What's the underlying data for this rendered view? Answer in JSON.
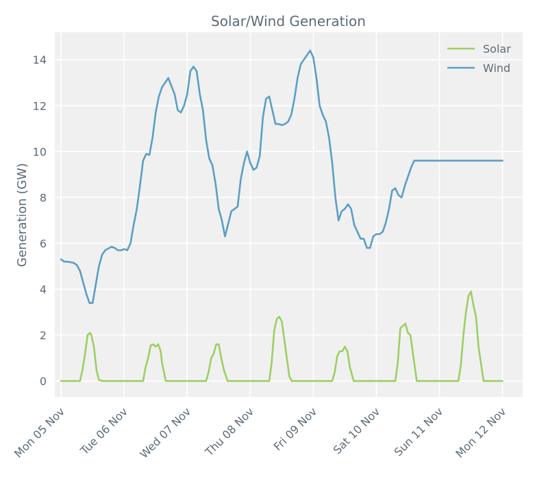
{
  "chart_data": {
    "type": "line",
    "title": "Solar/Wind Generation",
    "xlabel": "",
    "ylabel": "Generation (GW)",
    "ylim": [
      -0.7,
      15.2
    ],
    "xlim": [
      -0.1,
      7.32
    ],
    "yticks": [
      0,
      2,
      4,
      6,
      8,
      10,
      12,
      14
    ],
    "xticks": [
      {
        "x": 0,
        "label": "Mon 05 Nov"
      },
      {
        "x": 1,
        "label": "Tue 06 Nov"
      },
      {
        "x": 2,
        "label": "Wed 07 Nov"
      },
      {
        "x": 3,
        "label": "Thu 08 Nov"
      },
      {
        "x": 4,
        "label": "Fri 09 Nov"
      },
      {
        "x": 5,
        "label": "Sat 10 Nov"
      },
      {
        "x": 6,
        "label": "Sun 11 Nov"
      },
      {
        "x": 7,
        "label": "Mon 12 Nov"
      }
    ],
    "grid": true,
    "legend_position": "top-right",
    "series": [
      {
        "name": "Solar",
        "color": "#9dce63",
        "x": [
          0,
          0.3,
          0.34,
          0.38,
          0.42,
          0.46,
          0.48,
          0.52,
          0.56,
          0.6,
          0.66,
          1.0,
          1.3,
          1.34,
          1.38,
          1.42,
          1.46,
          1.5,
          1.54,
          1.58,
          1.6,
          1.66,
          2.0,
          2.3,
          2.34,
          2.38,
          2.42,
          2.46,
          2.5,
          2.54,
          2.58,
          2.64,
          3.0,
          3.3,
          3.34,
          3.38,
          3.42,
          3.46,
          3.5,
          3.54,
          3.58,
          3.62,
          3.66,
          4.0,
          4.3,
          4.34,
          4.38,
          4.42,
          4.46,
          4.5,
          4.54,
          4.58,
          4.64,
          5.0,
          5.3,
          5.34,
          5.38,
          5.42,
          5.46,
          5.5,
          5.54,
          5.58,
          5.64,
          6.0,
          6.3,
          6.34,
          6.38,
          6.42,
          6.46,
          6.5,
          6.54,
          6.58,
          6.62,
          6.7,
          7.0
        ],
        "y": [
          0,
          0,
          0.5,
          1.2,
          2.0,
          2.1,
          2.0,
          1.5,
          0.5,
          0.05,
          0,
          0,
          0,
          0.6,
          1.0,
          1.55,
          1.6,
          1.5,
          1.6,
          1.3,
          0.8,
          0,
          0,
          0,
          0.4,
          1.0,
          1.2,
          1.6,
          1.6,
          1.0,
          0.5,
          0,
          0,
          0,
          0.8,
          2.2,
          2.7,
          2.8,
          2.6,
          1.8,
          1.0,
          0.2,
          0,
          0,
          0,
          0.4,
          1.1,
          1.3,
          1.3,
          1.5,
          1.3,
          0.6,
          0,
          0,
          0,
          0.8,
          2.3,
          2.4,
          2.5,
          2.1,
          2.0,
          1.2,
          0,
          0,
          0,
          0.7,
          2.0,
          3.0,
          3.7,
          3.9,
          3.3,
          2.8,
          1.5,
          0,
          0
        ]
      },
      {
        "name": "Wind",
        "color": "#5a9ec6",
        "x": [
          0,
          0.05,
          0.1,
          0.2,
          0.25,
          0.3,
          0.35,
          0.4,
          0.45,
          0.5,
          0.55,
          0.6,
          0.65,
          0.7,
          0.8,
          0.85,
          0.9,
          0.95,
          1.0,
          1.05,
          1.1,
          1.15,
          1.2,
          1.25,
          1.3,
          1.35,
          1.4,
          1.45,
          1.5,
          1.55,
          1.6,
          1.7,
          1.8,
          1.85,
          1.9,
          1.95,
          2.0,
          2.05,
          2.1,
          2.15,
          2.2,
          2.25,
          2.3,
          2.35,
          2.4,
          2.45,
          2.5,
          2.55,
          2.6,
          2.7,
          2.8,
          2.85,
          2.9,
          2.95,
          3.0,
          3.05,
          3.1,
          3.15,
          3.2,
          3.25,
          3.3,
          3.35,
          3.4,
          3.45,
          3.5,
          3.55,
          3.6,
          3.65,
          3.7,
          3.75,
          3.8,
          3.85,
          3.9,
          3.95,
          4.0,
          4.05,
          4.1,
          4.15,
          4.2,
          4.25,
          4.3,
          4.35,
          4.4,
          4.45,
          4.5,
          4.55,
          4.6,
          4.65,
          4.7,
          4.75,
          4.8,
          4.85,
          4.9,
          4.95,
          5.0,
          5.05,
          5.1,
          5.15,
          5.2,
          5.25,
          5.3,
          5.35,
          5.4,
          5.45,
          5.5,
          5.55,
          5.6,
          5.65,
          5.7,
          5.75,
          5.8,
          5.85,
          5.9,
          5.95,
          6.0,
          6.05,
          6.1,
          6.15,
          6.2,
          6.25,
          6.3,
          6.35,
          6.4,
          6.45,
          6.5,
          6.55,
          6.6,
          6.65,
          6.7,
          6.75,
          6.8,
          6.85,
          6.9,
          6.95,
          7.0
        ],
        "y": [
          5.3,
          5.2,
          5.2,
          5.15,
          5.05,
          4.8,
          4.3,
          3.8,
          3.4,
          3.4,
          4.2,
          5.0,
          5.5,
          5.7,
          5.85,
          5.8,
          5.7,
          5.7,
          5.75,
          5.7,
          6.0,
          6.8,
          7.5,
          8.5,
          9.6,
          9.9,
          9.85,
          10.6,
          11.7,
          12.4,
          12.8,
          13.2,
          12.5,
          11.8,
          11.7,
          12.0,
          12.5,
          13.5,
          13.7,
          13.5,
          12.5,
          11.8,
          10.5,
          9.7,
          9.4,
          8.6,
          7.5,
          7.0,
          6.3,
          7.4,
          7.6,
          8.8,
          9.5,
          10.0,
          9.5,
          9.2,
          9.3,
          9.8,
          11.5,
          12.3,
          12.4,
          11.8,
          11.2,
          11.2,
          11.15,
          11.2,
          11.3,
          11.6,
          12.3,
          13.2,
          13.8,
          14.0,
          14.2,
          14.4,
          14.1,
          13.2,
          12.0,
          11.6,
          11.3,
          10.6,
          9.5,
          8.0,
          7.0,
          7.4,
          7.5,
          7.7,
          7.5,
          6.8,
          6.5,
          6.2,
          6.2,
          5.8,
          5.8,
          6.3,
          6.4,
          6.4,
          6.5,
          6.9,
          7.5,
          8.3,
          8.4,
          8.1,
          8.0,
          8.5,
          8.9,
          9.3,
          9.6,
          9.6,
          9.6,
          9.6,
          9.6,
          9.6,
          9.6,
          9.6,
          9.6,
          9.6,
          9.6,
          9.6,
          9.6,
          9.6,
          9.6,
          9.6,
          9.6,
          9.6,
          9.6,
          9.6,
          9.6,
          9.6,
          9.6,
          9.6,
          9.6,
          9.6,
          9.6,
          9.6,
          9.6
        ]
      }
    ]
  }
}
